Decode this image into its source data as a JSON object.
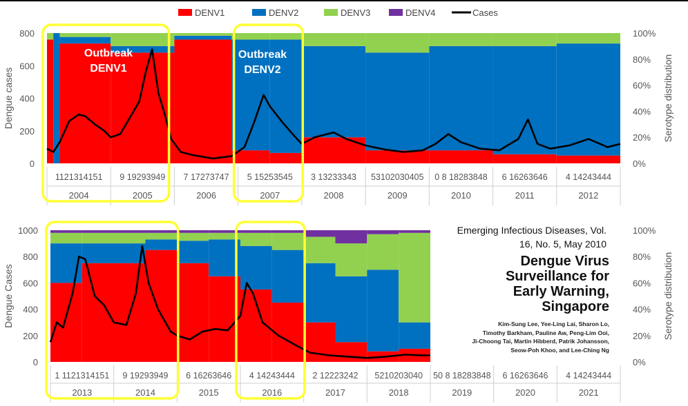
{
  "legend": {
    "items": [
      {
        "label": "DENV1",
        "color": "#ff0000",
        "kind": "box"
      },
      {
        "label": "DENV2",
        "color": "#0070c0",
        "kind": "box"
      },
      {
        "label": "DENV3",
        "color": "#92d050",
        "kind": "box"
      },
      {
        "label": "DENV4",
        "color": "#7030a0",
        "kind": "box"
      },
      {
        "label": "Cases",
        "color": "#000000",
        "kind": "line"
      }
    ]
  },
  "colors": {
    "denv1": "#ff0000",
    "denv2": "#0070c0",
    "denv3": "#92d050",
    "denv4": "#7030a0",
    "cases": "#000000",
    "highlight": "#ffff33"
  },
  "annotations": [
    {
      "text": "Outbreak",
      "panel": 0
    },
    {
      "text": "DENV1",
      "panel": 0
    },
    {
      "text": "Outbreak",
      "panel": 0
    },
    {
      "text": "DENV2",
      "panel": 0
    }
  ],
  "citation": {
    "journal_line1": "Emerging Infectious Diseases, Vol.",
    "journal_line2": "16, No. 5, May 2010",
    "title_lines": [
      "Dengue Virus",
      "Surveillance for",
      "Early Warning,",
      "Singapore"
    ],
    "authors_lines": [
      "Kim-Sung Lee, Yee-Ling Lai, Sharon Lo,",
      "Timothy Barkham, Pauline Aw, Peng-Lim Ooi,",
      "Ji-Choong Tai, Martin Hibberd, Patrik Johansson,",
      "Seow-Poh Khoo, and Lee-Ching Ng"
    ]
  },
  "chart_data": [
    {
      "type": "area",
      "ylabel": "Dengue cases",
      "y2label": "Serotype distribution",
      "ylim": [
        0,
        800
      ],
      "yticks": [
        0,
        200,
        400,
        600,
        800
      ],
      "y2ticks": [
        "0%",
        "20%",
        "40%",
        "60%",
        "80%",
        "100%"
      ],
      "years": [
        "2004",
        "2005",
        "2006",
        "2007",
        "2008",
        "2009",
        "2010",
        "2011",
        "2012"
      ],
      "week_tick_labels": [
        "1121314151",
        "9 19293949",
        "7 17273747",
        "5 15253545",
        "3 13233343",
        "53102030405",
        "0 8 18283848",
        "6 16263646",
        "4 14243444"
      ],
      "highlights": [
        {
          "from_year": 2004,
          "to_year": 2005.85,
          "label": "Outbreak DENV1"
        },
        {
          "from_year": 2007,
          "to_year": 2007.95,
          "label": "Outbreak DENV2"
        }
      ],
      "serotype_eras": [
        {
          "t": 2004.0,
          "denv1": 0.95,
          "denv2": 0.0,
          "denv3": 0.05,
          "denv4": 0.0
        },
        {
          "t": 2004.1,
          "denv1": 0.0,
          "denv2": 1.0,
          "denv3": 0.0,
          "denv4": 0.0
        },
        {
          "t": 2004.2,
          "denv1": 0.92,
          "denv2": 0.05,
          "denv3": 0.03,
          "denv4": 0.0
        },
        {
          "t": 2005.0,
          "denv1": 0.85,
          "denv2": 0.05,
          "denv3": 0.1,
          "denv4": 0.0
        },
        {
          "t": 2006.0,
          "denv1": 0.95,
          "denv2": 0.03,
          "denv3": 0.02,
          "denv4": 0.0
        },
        {
          "t": 2006.9,
          "denv1": 0.1,
          "denv2": 0.85,
          "denv3": 0.05,
          "denv4": 0.0
        },
        {
          "t": 2007.5,
          "denv1": 0.08,
          "denv2": 0.87,
          "denv3": 0.05,
          "denv4": 0.0
        },
        {
          "t": 2008.0,
          "denv1": 0.2,
          "denv2": 0.7,
          "denv3": 0.1,
          "denv4": 0.0
        },
        {
          "t": 2009.0,
          "denv1": 0.1,
          "denv2": 0.75,
          "denv3": 0.15,
          "denv4": 0.0
        },
        {
          "t": 2010.0,
          "denv1": 0.1,
          "denv2": 0.8,
          "denv3": 0.1,
          "denv4": 0.0
        },
        {
          "t": 2011.0,
          "denv1": 0.07,
          "denv2": 0.83,
          "denv3": 0.1,
          "denv4": 0.0
        },
        {
          "t": 2012.0,
          "denv1": 0.06,
          "denv2": 0.86,
          "denv3": 0.08,
          "denv4": 0.0
        },
        {
          "t": 2013.0,
          "denv1": 0.12,
          "denv2": 0.8,
          "denv3": 0.08,
          "denv4": 0.0
        }
      ],
      "cases": [
        [
          2004.0,
          90
        ],
        [
          2004.1,
          70
        ],
        [
          2004.2,
          130
        ],
        [
          2004.35,
          260
        ],
        [
          2004.5,
          300
        ],
        [
          2004.6,
          290
        ],
        [
          2004.75,
          240
        ],
        [
          2004.9,
          200
        ],
        [
          2005.0,
          160
        ],
        [
          2005.15,
          180
        ],
        [
          2005.3,
          280
        ],
        [
          2005.45,
          380
        ],
        [
          2005.55,
          560
        ],
        [
          2005.65,
          700
        ],
        [
          2005.75,
          430
        ],
        [
          2005.85,
          300
        ],
        [
          2005.95,
          150
        ],
        [
          2006.1,
          70
        ],
        [
          2006.3,
          50
        ],
        [
          2006.6,
          30
        ],
        [
          2006.9,
          45
        ],
        [
          2007.1,
          100
        ],
        [
          2007.25,
          250
        ],
        [
          2007.4,
          420
        ],
        [
          2007.5,
          350
        ],
        [
          2007.7,
          250
        ],
        [
          2007.9,
          160
        ],
        [
          2008.0,
          120
        ],
        [
          2008.2,
          160
        ],
        [
          2008.5,
          190
        ],
        [
          2008.7,
          150
        ],
        [
          2009.0,
          110
        ],
        [
          2009.3,
          85
        ],
        [
          2009.6,
          70
        ],
        [
          2009.9,
          80
        ],
        [
          2010.1,
          120
        ],
        [
          2010.3,
          180
        ],
        [
          2010.5,
          130
        ],
        [
          2010.8,
          90
        ],
        [
          2011.1,
          80
        ],
        [
          2011.4,
          150
        ],
        [
          2011.55,
          270
        ],
        [
          2011.7,
          120
        ],
        [
          2011.9,
          90
        ],
        [
          2012.2,
          110
        ],
        [
          2012.5,
          150
        ],
        [
          2012.8,
          100
        ],
        [
          2013.0,
          120
        ]
      ]
    },
    {
      "type": "area",
      "ylabel": "Dengue Cases",
      "y2label": "Serotype distribution",
      "ylim": [
        0,
        1000
      ],
      "yticks": [
        0,
        200,
        400,
        600,
        800,
        1000
      ],
      "y2ticks": [
        "0%",
        "20%",
        "40%",
        "60%",
        "80%",
        "100%"
      ],
      "years": [
        "2013",
        "2014",
        "2015",
        "2016",
        "2017",
        "2018",
        "2019",
        "2020",
        "2021"
      ],
      "week_tick_labels": [
        "1 1121314151",
        "9 19293949",
        "6 16263646",
        "4 14243444",
        "2 12223242",
        "5210203040",
        "50 8 18283848",
        "6 16263646",
        "4 14243444"
      ],
      "data_end_year": 2019.0,
      "highlights": [
        {
          "from_year": 2013,
          "to_year": 2014.95
        },
        {
          "from_year": 2016,
          "to_year": 2016.95
        }
      ],
      "serotype_eras": [
        {
          "t": 2013.0,
          "denv1": 0.6,
          "denv2": 0.3,
          "denv3": 0.08,
          "denv4": 0.02
        },
        {
          "t": 2013.5,
          "denv1": 0.75,
          "denv2": 0.15,
          "denv3": 0.08,
          "denv4": 0.02
        },
        {
          "t": 2014.5,
          "denv1": 0.85,
          "denv2": 0.08,
          "denv3": 0.05,
          "denv4": 0.02
        },
        {
          "t": 2015.0,
          "denv1": 0.75,
          "denv2": 0.17,
          "denv3": 0.06,
          "denv4": 0.02
        },
        {
          "t": 2015.5,
          "denv1": 0.65,
          "denv2": 0.28,
          "denv3": 0.05,
          "denv4": 0.02
        },
        {
          "t": 2016.0,
          "denv1": 0.55,
          "denv2": 0.33,
          "denv3": 0.1,
          "denv4": 0.02
        },
        {
          "t": 2016.5,
          "denv1": 0.45,
          "denv2": 0.4,
          "denv3": 0.13,
          "denv4": 0.02
        },
        {
          "t": 2017.0,
          "denv1": 0.3,
          "denv2": 0.45,
          "denv3": 0.2,
          "denv4": 0.05
        },
        {
          "t": 2017.5,
          "denv1": 0.15,
          "denv2": 0.5,
          "denv3": 0.25,
          "denv4": 0.1
        },
        {
          "t": 2018.0,
          "denv1": 0.08,
          "denv2": 0.62,
          "denv3": 0.27,
          "denv4": 0.03
        },
        {
          "t": 2018.5,
          "denv1": 0.1,
          "denv2": 0.2,
          "denv3": 0.68,
          "denv4": 0.02
        },
        {
          "t": 2019.0,
          "denv1": 0.1,
          "denv2": 0.1,
          "denv3": 0.78,
          "denv4": 0.02
        }
      ],
      "cases": [
        [
          2013.0,
          150
        ],
        [
          2013.1,
          300
        ],
        [
          2013.2,
          260
        ],
        [
          2013.35,
          520
        ],
        [
          2013.45,
          800
        ],
        [
          2013.55,
          780
        ],
        [
          2013.7,
          500
        ],
        [
          2013.85,
          430
        ],
        [
          2014.0,
          300
        ],
        [
          2014.2,
          280
        ],
        [
          2014.35,
          520
        ],
        [
          2014.45,
          880
        ],
        [
          2014.55,
          600
        ],
        [
          2014.7,
          400
        ],
        [
          2014.9,
          230
        ],
        [
          2015.0,
          200
        ],
        [
          2015.2,
          170
        ],
        [
          2015.4,
          230
        ],
        [
          2015.6,
          250
        ],
        [
          2015.8,
          240
        ],
        [
          2016.0,
          350
        ],
        [
          2016.1,
          600
        ],
        [
          2016.2,
          520
        ],
        [
          2016.35,
          300
        ],
        [
          2016.6,
          200
        ],
        [
          2016.9,
          120
        ],
        [
          2017.1,
          70
        ],
        [
          2017.4,
          50
        ],
        [
          2017.7,
          40
        ],
        [
          2018.0,
          30
        ],
        [
          2018.3,
          40
        ],
        [
          2018.6,
          55
        ],
        [
          2018.85,
          50
        ],
        [
          2019.0,
          50
        ]
      ]
    }
  ]
}
